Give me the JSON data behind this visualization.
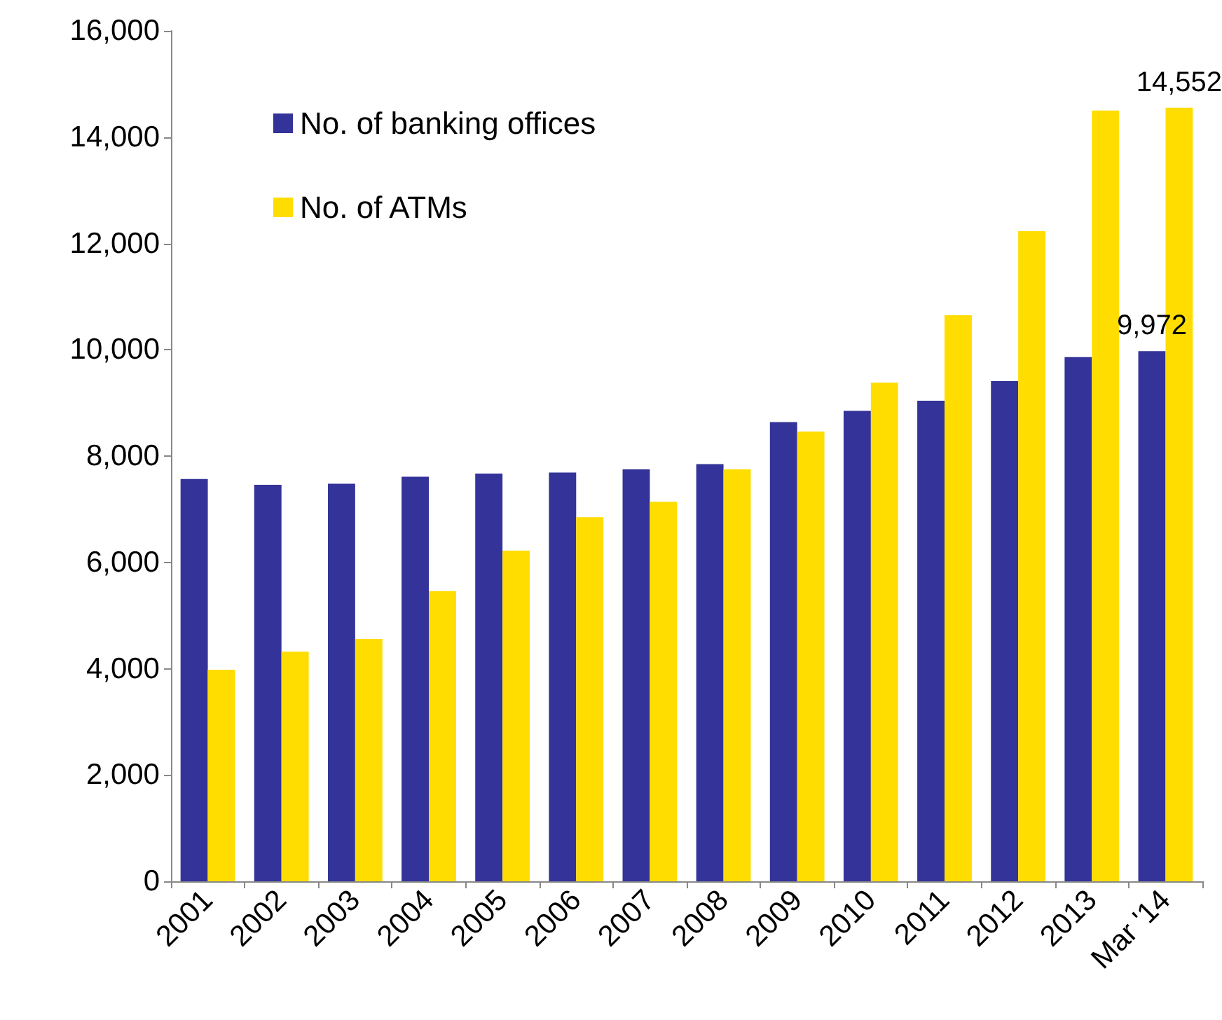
{
  "chart_data": {
    "type": "bar",
    "categories": [
      "2001",
      "2002",
      "2003",
      "2004",
      "2005",
      "2006",
      "2007",
      "2008",
      "2009",
      "2010",
      "2011",
      "2012",
      "2013",
      "Mar '14"
    ],
    "series": [
      {
        "name": "No. of banking offices",
        "color": "#333399",
        "values": [
          7570,
          7460,
          7480,
          7610,
          7670,
          7690,
          7750,
          7850,
          8640,
          8850,
          9040,
          9410,
          9860,
          9972
        ],
        "value_labels": [
          null,
          null,
          null,
          null,
          null,
          null,
          null,
          null,
          null,
          null,
          null,
          null,
          null,
          "9,972"
        ]
      },
      {
        "name": "No. of ATMs",
        "color": "#ffdd00",
        "values": [
          3980,
          4320,
          4560,
          5460,
          6220,
          6850,
          7140,
          7750,
          8460,
          9380,
          10650,
          12230,
          14500,
          14552
        ],
        "value_labels": [
          null,
          null,
          null,
          null,
          null,
          null,
          null,
          null,
          null,
          null,
          null,
          null,
          null,
          "14,552"
        ]
      }
    ],
    "ylim": [
      0,
      16000
    ],
    "yticks": [
      0,
      {
        "value": 2000,
        "label": "2,000"
      },
      {
        "value": 4000,
        "label": "4,000"
      },
      {
        "value": 6000,
        "label": "6,000"
      },
      {
        "value": 8000,
        "label": "8,000"
      },
      {
        "value": 10000,
        "label": "10,000"
      },
      {
        "value": 12000,
        "label": "12,000"
      },
      {
        "value": 14000,
        "label": "14,000"
      },
      {
        "value": 16000,
        "label": "16,000"
      }
    ],
    "grid": false,
    "legend": "top left"
  }
}
